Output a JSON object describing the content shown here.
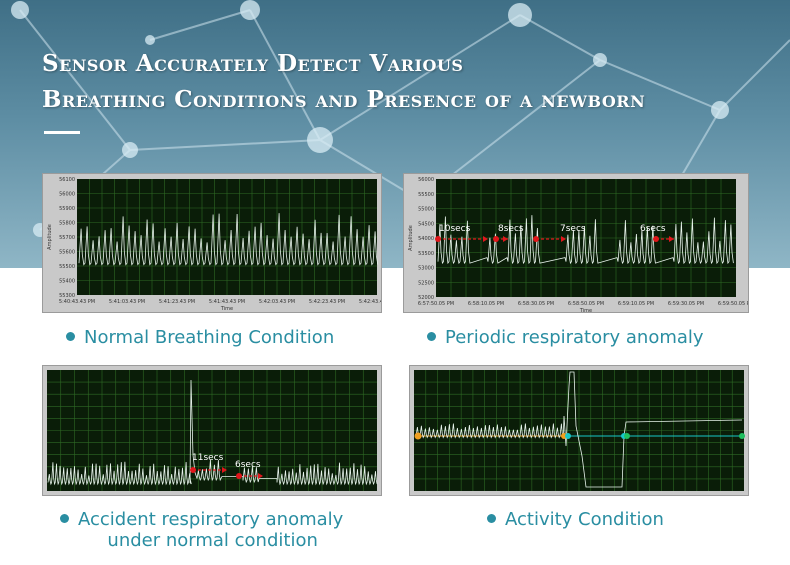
{
  "header": {
    "title_line1": "Sensor Accurately Detect Various",
    "title_line2": "Breathing Conditions and Presence of a newborn"
  },
  "colors": {
    "accent": "#2a8ea2",
    "plot_bg": "#0a1d08",
    "grid": "#2e6a24",
    "trace": "#e8f4ec",
    "marker_red": "#e0161b",
    "cursor_orange": "#f0a020",
    "cursor_cyan": "#17c8c8",
    "cursor_green": "#1fc060"
  },
  "captions": {
    "normal": "Normal Breathing Condition",
    "periodic": "Periodic respiratory anomaly",
    "accident_line1": "Accident respiratory anomaly",
    "accident_line2": "under normal condition",
    "activity": "Activity Condition"
  },
  "chart_data": [
    {
      "id": "normal",
      "type": "line",
      "ylabel": "Amplitude",
      "xlabel": "Time",
      "ylim": [
        55300,
        56100
      ],
      "yticks": [
        "56100",
        "56000",
        "55900",
        "55800",
        "55700",
        "55600",
        "55500",
        "55400",
        "55300"
      ],
      "xticks": [
        "5:40:43.43 PM",
        "5:41:03.43 PM",
        "5:41:23.43 PM",
        "5:41:43.43 PM",
        "5:42:03.43 PM",
        "5:42:23.43 PM",
        "5:42:43.43 PM"
      ],
      "pattern": {
        "baseline": 55520,
        "peak_avg": 55760,
        "peaks_per_view": 50
      },
      "grid": true
    },
    {
      "id": "periodic",
      "type": "line",
      "ylabel": "Amplitude",
      "xlabel": "Time",
      "ylim": [
        52000,
        56000
      ],
      "yticks": [
        "56000",
        "55500",
        "55000",
        "54500",
        "54000",
        "53500",
        "53000",
        "52500",
        "52000"
      ],
      "xticks": [
        "6:57:50.05 PM",
        "6:58:10.05 PM",
        "6:58:30.05 PM",
        "6:58:50.05 PM",
        "6:59:10.05 PM",
        "6:59:30.05 PM",
        "6:59:50.05 PM"
      ],
      "annotations": [
        "10secs",
        "8secs",
        "7secs",
        "6secs"
      ],
      "grid": true
    },
    {
      "id": "accident",
      "type": "line",
      "annotations": [
        "11secs",
        "6secs"
      ],
      "grid": true
    },
    {
      "id": "activity",
      "type": "line",
      "grid": true
    }
  ]
}
